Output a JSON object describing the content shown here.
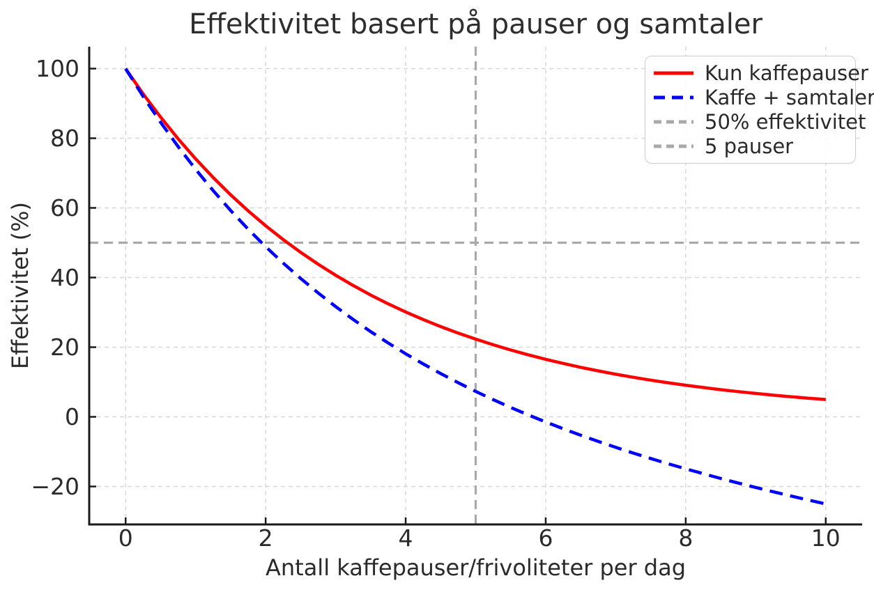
{
  "chart_data": {
    "type": "line",
    "title": "Effektivitet basert på pauser og samtaler",
    "xlabel": "Antall kaffepauser/frivoliteter per dag",
    "ylabel": "Effektivitet (%)",
    "xlim": [
      -0.52,
      10.52
    ],
    "ylim": [
      -30.9,
      106.3
    ],
    "xticks": [
      0,
      2,
      4,
      6,
      8,
      10
    ],
    "yticks": [
      -20,
      0,
      20,
      40,
      60,
      80,
      100
    ],
    "grid": true,
    "grid_style": "dashed",
    "legend_position": "upper right",
    "x": [
      0,
      0.25,
      0.5,
      0.75,
      1,
      1.25,
      1.5,
      1.75,
      2,
      2.25,
      2.5,
      2.75,
      3,
      3.25,
      3.5,
      3.75,
      4,
      4.25,
      4.5,
      4.75,
      5,
      5.25,
      5.5,
      5.75,
      6,
      6.25,
      6.5,
      6.75,
      7,
      7.25,
      7.5,
      7.75,
      8,
      8.25,
      8.5,
      8.75,
      9,
      9.25,
      9.5,
      9.75,
      10
    ],
    "series": [
      {
        "name": "Kun kaffepauser",
        "color": "#ff0000",
        "line_style": "solid",
        "line_width": 4.5,
        "values": [
          100,
          92.77,
          86.07,
          79.85,
          74.08,
          68.73,
          63.76,
          59.16,
          54.88,
          50.92,
          47.24,
          43.82,
          40.66,
          37.72,
          34.99,
          32.47,
          30.12,
          27.94,
          25.92,
          24.04,
          22.31,
          20.7,
          19.21,
          17.81,
          16.53,
          15.34,
          14.23,
          13.2,
          12.25,
          11.36,
          10.54,
          9.78,
          9.07,
          8.42,
          7.81,
          7.24,
          6.72,
          6.23,
          5.78,
          5.37,
          4.98
        ]
      },
      {
        "name": "Kaffe + samtaler",
        "color": "#0000ff",
        "line_style": "dashed",
        "line_width": 4.5,
        "values": [
          100,
          92.02,
          84.57,
          77.6,
          71.08,
          64.98,
          59.26,
          53.91,
          48.88,
          44.17,
          39.74,
          35.57,
          31.66,
          27.97,
          24.49,
          21.22,
          18.12,
          15.19,
          12.42,
          9.8,
          7.31,
          4.95,
          2.71,
          0.56,
          -1.47,
          -3.41,
          -5.27,
          -7.05,
          -8.75,
          -10.39,
          -11.96,
          -13.47,
          -14.93,
          -16.33,
          -17.69,
          -19.01,
          -20.28,
          -21.52,
          -22.72,
          -23.88,
          -25.02
        ]
      }
    ],
    "reference_lines": [
      {
        "name": "50% effektivitet",
        "orientation": "horizontal",
        "value": 50,
        "color": "#a9a9a9",
        "line_style": "dashed"
      },
      {
        "name": "5 pauser",
        "orientation": "vertical",
        "value": 5,
        "color": "#a9a9a9",
        "line_style": "dashed"
      }
    ]
  },
  "legend": {
    "items": [
      {
        "label": "Kun kaffepauser",
        "color": "#ff0000",
        "line_style": "solid"
      },
      {
        "label": "Kaffe + samtaler",
        "color": "#0000ff",
        "line_style": "dashed"
      },
      {
        "label": "50% effektivitet",
        "color": "#a9a9a9",
        "line_style": "dashed"
      },
      {
        "label": "5 pauser",
        "color": "#a9a9a9",
        "line_style": "dashed"
      }
    ]
  },
  "colors": {
    "grid": "#d7d7d7",
    "spine": "#1a1a1a",
    "text": "#2a2a2a",
    "legend_border": "#cccccc"
  }
}
